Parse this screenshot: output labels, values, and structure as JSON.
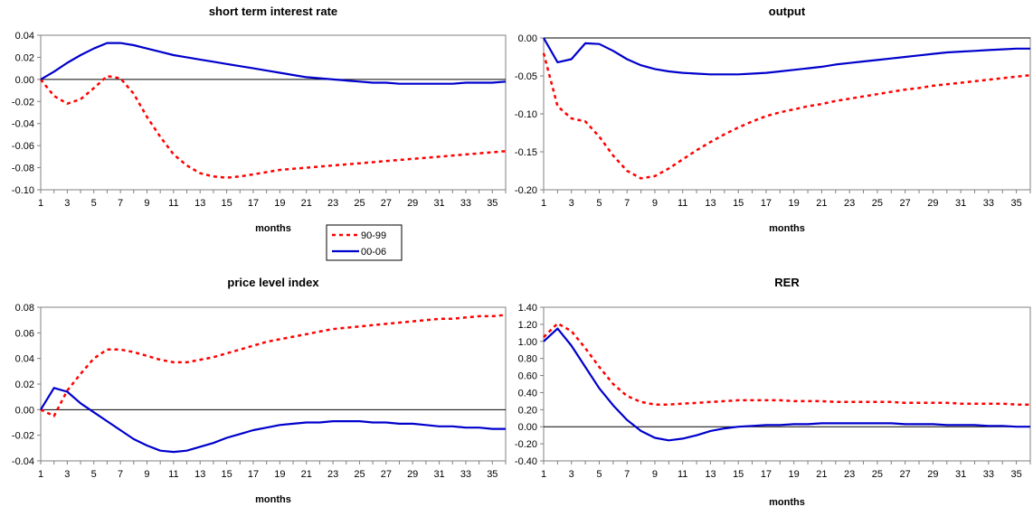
{
  "colors": {
    "series_90_99": "#ff0000",
    "series_00_06": "#0000cc",
    "frame": "#808080",
    "zero_line": "#000000"
  },
  "chart_data": [
    {
      "type": "line",
      "title": "short term interest rate",
      "xlabel": "months",
      "ylabel": "",
      "xlim": [
        1,
        36
      ],
      "ylim": [
        -0.1,
        0.04
      ],
      "yticks": [
        "0.04",
        "0.02",
        "0.00",
        "-0.02",
        "-0.04",
        "-0.06",
        "-0.08",
        "-0.10"
      ],
      "xticks": [
        "1",
        "3",
        "5",
        "7",
        "9",
        "11",
        "13",
        "15",
        "17",
        "19",
        "21",
        "23",
        "25",
        "27",
        "29",
        "31",
        "33",
        "35"
      ],
      "legend": {
        "position": "center-right",
        "entries": [
          "90-99",
          "00-06"
        ]
      },
      "series": [
        {
          "name": "90-99",
          "style": "dotted",
          "values": [
            0.0,
            -0.015,
            -0.022,
            -0.018,
            -0.008,
            0.003,
            0.001,
            -0.013,
            -0.034,
            -0.052,
            -0.068,
            -0.078,
            -0.085,
            -0.088,
            -0.089,
            -0.088,
            -0.086,
            -0.084,
            -0.082,
            -0.081,
            -0.08,
            -0.079,
            -0.078,
            -0.077,
            -0.076,
            -0.075,
            -0.074,
            -0.073,
            -0.072,
            -0.071,
            -0.07,
            -0.069,
            -0.068,
            -0.067,
            -0.066,
            -0.065
          ]
        },
        {
          "name": "00-06",
          "style": "solid",
          "values": [
            0.0,
            0.007,
            0.015,
            0.022,
            0.028,
            0.033,
            0.033,
            0.031,
            0.028,
            0.025,
            0.022,
            0.02,
            0.018,
            0.016,
            0.014,
            0.012,
            0.01,
            0.008,
            0.006,
            0.004,
            0.002,
            0.001,
            0.0,
            -0.001,
            -0.002,
            -0.003,
            -0.003,
            -0.004,
            -0.004,
            -0.004,
            -0.004,
            -0.004,
            -0.003,
            -0.003,
            -0.003,
            -0.002
          ]
        }
      ]
    },
    {
      "type": "line",
      "title": "output",
      "xlabel": "months",
      "ylabel": "",
      "xlim": [
        1,
        36
      ],
      "ylim": [
        -0.2,
        0.0
      ],
      "yticks": [
        "0.00",
        "-0.05",
        "-0.10",
        "-0.15",
        "-0.20"
      ],
      "xticks": [
        "1",
        "3",
        "5",
        "7",
        "9",
        "11",
        "13",
        "15",
        "17",
        "19",
        "21",
        "23",
        "25",
        "27",
        "29",
        "31",
        "33",
        "35"
      ],
      "series": [
        {
          "name": "90-99",
          "style": "dotted",
          "values": [
            -0.02,
            -0.09,
            -0.106,
            -0.11,
            -0.13,
            -0.155,
            -0.175,
            -0.185,
            -0.182,
            -0.172,
            -0.16,
            -0.148,
            -0.137,
            -0.127,
            -0.118,
            -0.11,
            -0.103,
            -0.098,
            -0.094,
            -0.09,
            -0.087,
            -0.083,
            -0.08,
            -0.077,
            -0.074,
            -0.071,
            -0.068,
            -0.066,
            -0.063,
            -0.061,
            -0.059,
            -0.057,
            -0.055,
            -0.053,
            -0.051,
            -0.049
          ]
        },
        {
          "name": "00-06",
          "style": "solid",
          "values": [
            0.0,
            -0.032,
            -0.028,
            -0.007,
            -0.008,
            -0.017,
            -0.028,
            -0.036,
            -0.041,
            -0.044,
            -0.046,
            -0.047,
            -0.048,
            -0.048,
            -0.048,
            -0.047,
            -0.046,
            -0.044,
            -0.042,
            -0.04,
            -0.038,
            -0.035,
            -0.033,
            -0.031,
            -0.029,
            -0.027,
            -0.025,
            -0.023,
            -0.021,
            -0.019,
            -0.018,
            -0.017,
            -0.016,
            -0.015,
            -0.014,
            -0.014
          ]
        }
      ]
    },
    {
      "type": "line",
      "title": "price level index",
      "xlabel": "months",
      "ylabel": "",
      "xlim": [
        1,
        36
      ],
      "ylim": [
        -0.04,
        0.08
      ],
      "yticks": [
        "0.08",
        "0.06",
        "0.04",
        "0.02",
        "0.00",
        "-0.02",
        "-0.04"
      ],
      "xticks": [
        "1",
        "3",
        "5",
        "7",
        "9",
        "11",
        "13",
        "15",
        "17",
        "19",
        "21",
        "23",
        "25",
        "27",
        "29",
        "31",
        "33",
        "35"
      ],
      "series": [
        {
          "name": "90-99",
          "style": "dotted",
          "values": [
            0.0,
            -0.005,
            0.015,
            0.028,
            0.04,
            0.047,
            0.047,
            0.045,
            0.042,
            0.039,
            0.037,
            0.037,
            0.039,
            0.041,
            0.044,
            0.047,
            0.05,
            0.053,
            0.055,
            0.057,
            0.059,
            0.061,
            0.063,
            0.064,
            0.065,
            0.066,
            0.067,
            0.068,
            0.069,
            0.07,
            0.071,
            0.071,
            0.072,
            0.073,
            0.073,
            0.074
          ]
        },
        {
          "name": "00-06",
          "style": "solid",
          "values": [
            0.0,
            0.017,
            0.014,
            0.005,
            -0.002,
            -0.009,
            -0.016,
            -0.023,
            -0.028,
            -0.032,
            -0.033,
            -0.032,
            -0.029,
            -0.026,
            -0.022,
            -0.019,
            -0.016,
            -0.014,
            -0.012,
            -0.011,
            -0.01,
            -0.01,
            -0.009,
            -0.009,
            -0.009,
            -0.01,
            -0.01,
            -0.011,
            -0.011,
            -0.012,
            -0.013,
            -0.013,
            -0.014,
            -0.014,
            -0.015,
            -0.015
          ]
        }
      ]
    },
    {
      "type": "line",
      "title": "RER",
      "xlabel": "months",
      "ylabel": "",
      "xlim": [
        1,
        36
      ],
      "ylim": [
        -0.4,
        1.4
      ],
      "yticks": [
        "1.40",
        "1.20",
        "1.00",
        "0.80",
        "0.60",
        "0.40",
        "0.20",
        "0.00",
        "-0.20",
        "-0.40"
      ],
      "xticks": [
        "1",
        "3",
        "5",
        "7",
        "9",
        "11",
        "13",
        "15",
        "17",
        "19",
        "21",
        "23",
        "25",
        "27",
        "29",
        "31",
        "33",
        "35"
      ],
      "series": [
        {
          "name": "90-99",
          "style": "dotted",
          "values": [
            1.05,
            1.21,
            1.12,
            0.92,
            0.7,
            0.5,
            0.36,
            0.29,
            0.26,
            0.26,
            0.27,
            0.28,
            0.29,
            0.3,
            0.31,
            0.31,
            0.31,
            0.31,
            0.3,
            0.3,
            0.3,
            0.29,
            0.29,
            0.29,
            0.29,
            0.29,
            0.28,
            0.28,
            0.28,
            0.28,
            0.27,
            0.27,
            0.27,
            0.27,
            0.26,
            0.26
          ]
        },
        {
          "name": "00-06",
          "style": "solid",
          "values": [
            1.0,
            1.15,
            0.95,
            0.7,
            0.45,
            0.25,
            0.08,
            -0.05,
            -0.13,
            -0.16,
            -0.14,
            -0.1,
            -0.05,
            -0.02,
            0.0,
            0.01,
            0.02,
            0.02,
            0.03,
            0.03,
            0.04,
            0.04,
            0.04,
            0.04,
            0.04,
            0.04,
            0.03,
            0.03,
            0.03,
            0.02,
            0.02,
            0.02,
            0.01,
            0.01,
            0.0,
            0.0
          ]
        }
      ]
    }
  ]
}
